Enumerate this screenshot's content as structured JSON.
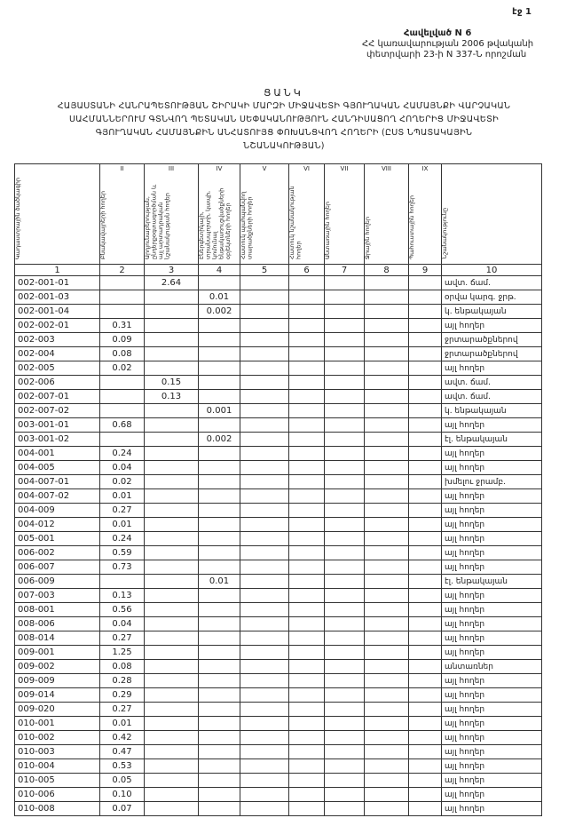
{
  "header": {
    "page": "էջ 1",
    "appendix": "Հավելված N 6",
    "decree_line1": "ՀՀ կառավարության 2006 թվականի",
    "decree_line2": "փետրվարի 23-ի N 337-Ն որոշման"
  },
  "title": {
    "heading": "ՑԱՆԿ",
    "lines": [
      "ՀԱՅԱՍՏԱՆԻ ՀԱՆՐԱՊԵՏՈՒԹՅԱՆ ՇԻՐԱԿԻ ՄԱՐԶԻ ՄԻՋԱՎԵՏԻ ԳՅՈՒՂԱԿԱՆ ՀԱՄԱՅՆՔԻ ՎԱՐՉԱԿԱՆ",
      "ՍԱՀՄԱՆՆԵՐՈՒՄ ԳՏՆՎՈՂ ՊԵՏԱԿԱՆ ՍԵՓԱԿԱՆՈՒԹՅՈՒՆ ՀԱՆԴԻՍԱՑՈՂ ՀՈՂԵՐԻՑ ՄԻՋԱՎԵՏԻ",
      "ԳՅՈՒՂԱԿԱՆ ՀԱՄԱՅՆՔԻՆ ԱՆՀԱՏՈՒՅՑ ՓՈԽԱՆՑՎՈՂ ՀՈՂԵՐԻ (ԸՍՏ ՆՊԱՏԱԿԱՅԻՆ",
      "ՆՇԱՆԱԿՈՒԹՅԱՆ)"
    ]
  },
  "table": {
    "columns": [
      {
        "header": "Կադաստրային ծածկագիր",
        "number": "1"
      },
      {
        "numeral": "II",
        "header": "Բնակավայրերի հողեր",
        "number": "2"
      },
      {
        "numeral": "III",
        "header": "Արդյունաբերության, ընդերքօգտագործման և այլ արտադրական նշանակության հողեր",
        "number": "3"
      },
      {
        "numeral": "IV",
        "header": "Էներգետիկայի, տրանսպորտի, կապի, կոմունալ ենթակառուցվածքների օբյեկտների հողեր",
        "number": "4"
      },
      {
        "numeral": "V",
        "header": "Հատուկ պահպանվող տարածքների հողեր",
        "number": "5"
      },
      {
        "numeral": "VI",
        "header": "Հատուկ նշանակության հողեր",
        "number": "6"
      },
      {
        "numeral": "VII",
        "header": "Անտառային հողեր",
        "number": "7"
      },
      {
        "numeral": "VIII",
        "header": "Ջրային հողեր",
        "number": "8"
      },
      {
        "numeral": "IX",
        "header": "Պահուստային հողեր",
        "number": "9"
      },
      {
        "header": "Նշանակությունը",
        "number": "10"
      }
    ],
    "rows": [
      {
        "col1": "002-001-01",
        "col3": "2.64",
        "col10": "ավտ. ճամ."
      },
      {
        "col1": "002-001-03",
        "col4": "0.01",
        "col10": "օրվա կարգ. ջրթ."
      },
      {
        "col1": "002-001-04",
        "col4": "0.002",
        "col10": "կ. ենթակայան"
      },
      {
        "col1": "002-002-01",
        "col2": "0.31",
        "col10": "այլ հողեր"
      },
      {
        "col1": "002-003",
        "col2": "0.09",
        "col10": "ջրտարածքներով"
      },
      {
        "col1": "002-004",
        "col2": "0.08",
        "col10": "ջրտարածքներով"
      },
      {
        "col1": "002-005",
        "col2": "0.02",
        "col10": "այլ հողեր"
      },
      {
        "col1": "002-006",
        "col3": "0.15",
        "col10": "ավտ. ճամ."
      },
      {
        "col1": "002-007-01",
        "col3": "0.13",
        "col10": "ավտ. ճամ."
      },
      {
        "col1": "002-007-02",
        "col4": "0.001",
        "col10": "կ. ենթակայան"
      },
      {
        "col1": "003-001-01",
        "col2": "0.68",
        "col10": "այլ հողեր"
      },
      {
        "col1": "003-001-02",
        "col4": "0.002",
        "col10": "էլ. ենթակայան"
      },
      {
        "col1": "004-001",
        "col2": "0.24",
        "col10": "այլ հողեր"
      },
      {
        "col1": "004-005",
        "col2": "0.04",
        "col10": "այլ հողեր"
      },
      {
        "col1": "004-007-01",
        "col2": "0.02",
        "col10": "խմելու ջրամբ."
      },
      {
        "col1": "004-007-02",
        "col2": "0.01",
        "col10": "այլ հողեր"
      },
      {
        "col1": "004-009",
        "col2": "0.27",
        "col10": "այլ հողեր"
      },
      {
        "col1": "004-012",
        "col2": "0.01",
        "col10": "այլ հողեր"
      },
      {
        "col1": "005-001",
        "col2": "0.24",
        "col10": "այլ հողեր"
      },
      {
        "col1": "006-002",
        "col2": "0.59",
        "col10": "այլ հողեր"
      },
      {
        "col1": "006-007",
        "col2": "0.73",
        "col10": "այլ հողեր"
      },
      {
        "col1": "006-009",
        "col4": "0.01",
        "col10": "էլ. ենթակայան"
      },
      {
        "col1": "007-003",
        "col2": "0.13",
        "col10": "այլ հողեր"
      },
      {
        "col1": "008-001",
        "col2": "0.56",
        "col10": "այլ հողեր"
      },
      {
        "col1": "008-006",
        "col2": "0.04",
        "col10": "այլ հողեր"
      },
      {
        "col1": "008-014",
        "col2": "0.27",
        "col10": "այլ հողեր"
      },
      {
        "col1": "009-001",
        "col2": "1.25",
        "col10": "այլ հողեր"
      },
      {
        "col1": "009-002",
        "col2": "0.08",
        "col10": "անտառներ"
      },
      {
        "col1": "009-009",
        "col2": "0.28",
        "col10": "այլ հողեր"
      },
      {
        "col1": "009-014",
        "col2": "0.29",
        "col10": "այլ հողեր"
      },
      {
        "col1": "009-020",
        "col2": "0.27",
        "col10": "այլ հողեր"
      },
      {
        "col1": "010-001",
        "col2": "0.01",
        "col10": "այլ հողեր"
      },
      {
        "col1": "010-002",
        "col2": "0.42",
        "col10": "այլ հողեր"
      },
      {
        "col1": "010-003",
        "col2": "0.47",
        "col10": "այլ հողեր"
      },
      {
        "col1": "010-004",
        "col2": "0.53",
        "col10": "այլ հողեր"
      },
      {
        "col1": "010-005",
        "col2": "0.05",
        "col10": "այլ հողեր"
      },
      {
        "col1": "010-006",
        "col2": "0.10",
        "col10": "այլ հողեր"
      },
      {
        "col1": "010-008",
        "col2": "0.07",
        "col10": "այլ հողեր"
      }
    ]
  }
}
